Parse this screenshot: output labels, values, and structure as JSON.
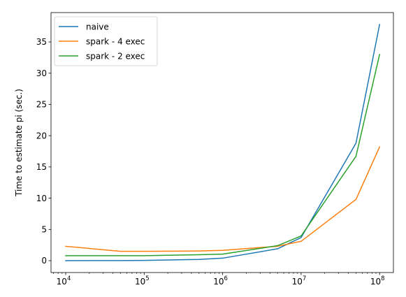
{
  "chart_data": {
    "type": "line",
    "xscale": "log",
    "x": [
      10000,
      50000,
      100000,
      500000,
      1000000,
      5000000,
      10000000,
      50000000,
      100000000
    ],
    "series": [
      {
        "name": "naive",
        "color": "#1f77b4",
        "values": [
          0.0,
          0.02,
          0.04,
          0.2,
          0.4,
          1.9,
          3.7,
          18.8,
          37.8
        ]
      },
      {
        "name": "spark - 4 exec",
        "color": "#ff7f0e",
        "values": [
          2.3,
          1.5,
          1.5,
          1.55,
          1.65,
          2.3,
          3.1,
          9.8,
          18.2
        ]
      },
      {
        "name": "spark - 2 exec",
        "color": "#2ca02c",
        "values": [
          0.8,
          0.8,
          0.8,
          0.95,
          1.05,
          2.4,
          3.95,
          16.7,
          33.0
        ]
      }
    ],
    "xlim": [
      6500,
      150000000
    ],
    "ylim": [
      -1.9,
      39.7
    ],
    "xticks": [
      {
        "value": 10000,
        "base": "10",
        "exp": "4"
      },
      {
        "value": 100000,
        "base": "10",
        "exp": "5"
      },
      {
        "value": 1000000,
        "base": "10",
        "exp": "6"
      },
      {
        "value": 10000000,
        "base": "10",
        "exp": "7"
      },
      {
        "value": 100000000,
        "base": "10",
        "exp": "8"
      }
    ],
    "yticks": [
      0,
      5,
      10,
      15,
      20,
      25,
      30,
      35
    ],
    "ytick_labels": [
      "0",
      "5",
      "10",
      "15",
      "20",
      "25",
      "30",
      "35"
    ],
    "xlabel": "",
    "ylabel": "Time to estimate pi (sec.)",
    "grid": false,
    "legend_position": "top-left"
  }
}
